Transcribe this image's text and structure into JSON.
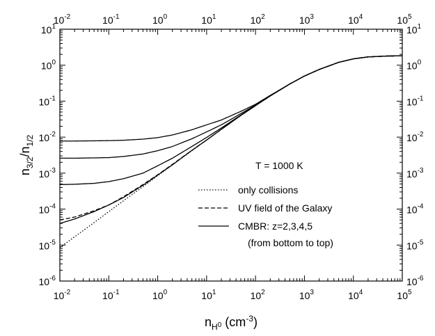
{
  "chart_data": {
    "type": "line",
    "xscale": "log",
    "yscale": "log",
    "xlim": [
      0.01,
      100000
    ],
    "ylim": [
      1e-06,
      10
    ],
    "x_ticks": [
      0.01,
      0.1,
      1,
      10,
      100,
      1000,
      10000,
      100000
    ],
    "x_tick_labels": [
      {
        "base": "10",
        "exp": "-2"
      },
      {
        "base": "10",
        "exp": "-1"
      },
      {
        "base": "10",
        "exp": "0"
      },
      {
        "base": "10",
        "exp": "1"
      },
      {
        "base": "10",
        "exp": "2"
      },
      {
        "base": "10",
        "exp": "3"
      },
      {
        "base": "10",
        "exp": "4"
      },
      {
        "base": "10",
        "exp": "5"
      }
    ],
    "y_ticks": [
      1e-06,
      1e-05,
      0.0001,
      0.001,
      0.01,
      0.1,
      1,
      10
    ],
    "y_tick_labels": [
      {
        "base": "10",
        "exp": "-6"
      },
      {
        "base": "10",
        "exp": "-5"
      },
      {
        "base": "10",
        "exp": "-4"
      },
      {
        "base": "10",
        "exp": "-3"
      },
      {
        "base": "10",
        "exp": "-2"
      },
      {
        "base": "10",
        "exp": "-1"
      },
      {
        "base": "10",
        "exp": "0"
      },
      {
        "base": "10",
        "exp": "1"
      }
    ],
    "xlabel": {
      "main": "n",
      "sub": "H",
      "subsup": "0",
      "unit": "(cm",
      "unit_exp": "-3",
      "unit_close": ")"
    },
    "ylabel": {
      "main1": "n",
      "sub1": "3/2",
      "slash": "/n",
      "sub2": "1/2"
    },
    "annotation": "T = 1000 K",
    "grid": false,
    "legend_position": "lower-right",
    "legend": [
      {
        "label": "only collisions",
        "style": "dotted"
      },
      {
        "label": "UV field of the Galaxy",
        "style": "dashed"
      },
      {
        "label": "CMBR: z=2,3,4,5",
        "style": "solid"
      }
    ],
    "legend_note": "(from bottom to top)",
    "series": [
      {
        "style": "dotted",
        "x": [
          0.01,
          0.02,
          0.05,
          0.1,
          0.2,
          0.5,
          1,
          2,
          5,
          10,
          20,
          50,
          100,
          200,
          500,
          1000,
          2000,
          5000,
          10000,
          20000,
          50000,
          100000
        ],
        "y": [
          8.5e-06,
          1.7e-05,
          4.2e-05,
          8.5e-05,
          0.00017,
          0.00042,
          0.00085,
          0.0017,
          0.0042,
          0.0083,
          0.0165,
          0.04,
          0.075,
          0.14,
          0.3,
          0.5,
          0.76,
          1.2,
          1.5,
          1.7,
          1.8,
          1.82
        ]
      },
      {
        "style": "dashed",
        "x": [
          0.01,
          0.02,
          0.05,
          0.1,
          0.2,
          0.5,
          1,
          2,
          5,
          10,
          20,
          50,
          100,
          200,
          500,
          1000,
          2000,
          5000,
          10000,
          20000,
          50000,
          100000
        ],
        "y": [
          5e-05,
          6e-05,
          9e-05,
          0.00013,
          0.00022,
          0.00048,
          0.0009,
          0.00175,
          0.0043,
          0.0083,
          0.0165,
          0.04,
          0.075,
          0.14,
          0.3,
          0.5,
          0.76,
          1.2,
          1.5,
          1.7,
          1.8,
          1.82
        ]
      },
      {
        "style": "solid",
        "x": [
          0.01,
          0.02,
          0.05,
          0.1,
          0.2,
          0.5,
          1,
          2,
          5,
          10,
          20,
          50,
          100,
          200,
          500,
          1000,
          2000,
          5000,
          10000,
          20000,
          50000,
          100000
        ],
        "y": [
          4e-05,
          5.3e-05,
          8.5e-05,
          0.00013,
          0.00021,
          0.00046,
          0.00088,
          0.0017,
          0.0043,
          0.0083,
          0.0165,
          0.04,
          0.075,
          0.14,
          0.3,
          0.5,
          0.76,
          1.2,
          1.5,
          1.7,
          1.8,
          1.82
        ]
      },
      {
        "style": "solid",
        "x": [
          0.01,
          0.02,
          0.05,
          0.1,
          0.2,
          0.5,
          1,
          2,
          5,
          10,
          20,
          50,
          100,
          200,
          500,
          1000,
          2000,
          5000,
          10000,
          20000,
          50000,
          100000
        ],
        "y": [
          0.00048,
          0.00049,
          0.00052,
          0.00058,
          0.0007,
          0.001,
          0.0016,
          0.0026,
          0.0055,
          0.0098,
          0.018,
          0.041,
          0.076,
          0.14,
          0.3,
          0.5,
          0.76,
          1.2,
          1.5,
          1.7,
          1.8,
          1.82
        ]
      },
      {
        "style": "solid",
        "x": [
          0.01,
          0.02,
          0.05,
          0.1,
          0.2,
          0.5,
          1,
          2,
          5,
          10,
          20,
          50,
          100,
          200,
          500,
          1000,
          2000,
          5000,
          10000,
          20000,
          50000,
          100000
        ],
        "y": [
          0.0026,
          0.0026,
          0.00265,
          0.0027,
          0.0029,
          0.0034,
          0.0042,
          0.0055,
          0.009,
          0.014,
          0.022,
          0.045,
          0.078,
          0.14,
          0.3,
          0.5,
          0.76,
          1.2,
          1.5,
          1.7,
          1.8,
          1.82
        ]
      },
      {
        "style": "solid",
        "x": [
          0.01,
          0.02,
          0.05,
          0.1,
          0.2,
          0.5,
          1,
          2,
          5,
          10,
          20,
          50,
          100,
          200,
          500,
          1000,
          2000,
          5000,
          10000,
          20000,
          50000,
          100000
        ],
        "y": [
          0.0078,
          0.0078,
          0.0079,
          0.008,
          0.0082,
          0.0088,
          0.0097,
          0.0115,
          0.016,
          0.022,
          0.03,
          0.052,
          0.082,
          0.145,
          0.3,
          0.5,
          0.76,
          1.2,
          1.5,
          1.7,
          1.8,
          1.82
        ]
      }
    ]
  }
}
